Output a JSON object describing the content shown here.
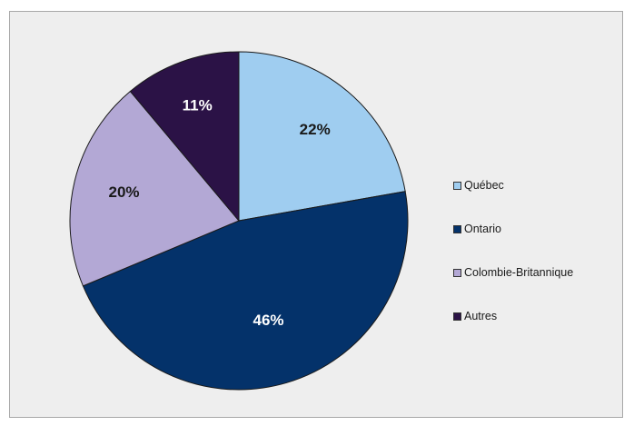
{
  "chart_data": {
    "type": "pie",
    "title": "",
    "legend_position": "right",
    "start": "12 o'clock, clockwise",
    "slices": [
      {
        "label": "Québec",
        "value": 22,
        "display": "22%",
        "color": "#9fcdf0",
        "label_color": "#1a1a1a"
      },
      {
        "label": "Ontario",
        "value": 46,
        "display": "46%",
        "color": "#04326a",
        "label_color": "#ffffff"
      },
      {
        "label": "Colombie-Britannique",
        "value": 20,
        "display": "20%",
        "color": "#b3a8d5",
        "label_color": "#1a1a1a"
      },
      {
        "label": "Autres",
        "value": 11,
        "display": "11%",
        "color": "#2b1246",
        "label_color": "#ffffff"
      }
    ]
  }
}
